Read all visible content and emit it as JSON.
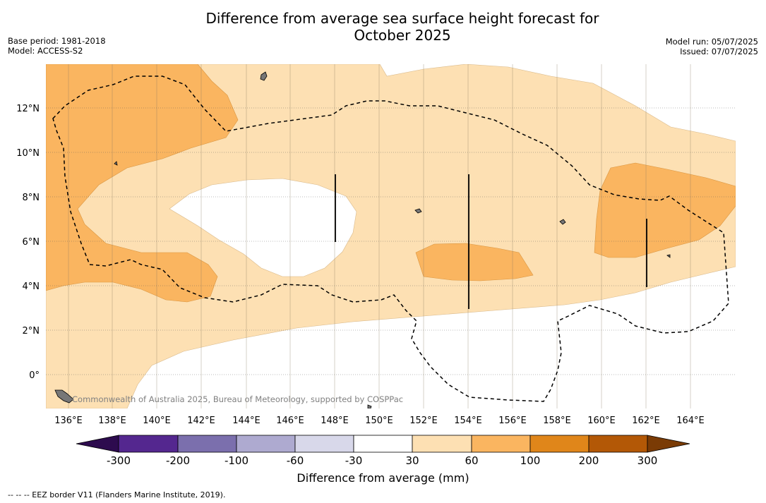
{
  "title_line1": "Difference from average sea surface height forecast for",
  "title_line2": "October 2025",
  "meta_left": [
    "Base period: 1981-2018",
    "Model: ACCESS-S2"
  ],
  "meta_right": [
    "Model run: 05/07/2025",
    "Issued: 07/07/2025"
  ],
  "copyright": "Commonwealth of Australia 2025, Bureau of Meteorology, supported by COSPPac",
  "colorbar_title": "Difference from average (mm)",
  "footnote": "--  --  -- EEZ border V11 (Flanders Marine Institute, 2019).",
  "x_ticks": [
    "136°E",
    "138°E",
    "140°E",
    "142°E",
    "144°E",
    "146°E",
    "148°E",
    "150°E",
    "152°E",
    "154°E",
    "156°E",
    "158°E",
    "160°E",
    "162°E",
    "164°E"
  ],
  "y_ticks": [
    "12°N",
    "10°N",
    "8°N",
    "6°N",
    "4°N",
    "2°N",
    "0°"
  ],
  "colorbar_ticks": [
    "-300",
    "-200",
    "-100",
    "-60",
    "-30",
    "30",
    "60",
    "100",
    "200",
    "300"
  ],
  "colorbar_colors": [
    "#2d0b4e",
    "#54278f",
    "#7b6fad",
    "#aeaad0",
    "#d8d8ea",
    "#ffffff",
    "#fde0b3",
    "#fab560",
    "#e0861a",
    "#b35806",
    "#7a3b05"
  ],
  "map_colors": {
    "light": "#fde0b3",
    "medium": "#fab560"
  }
}
